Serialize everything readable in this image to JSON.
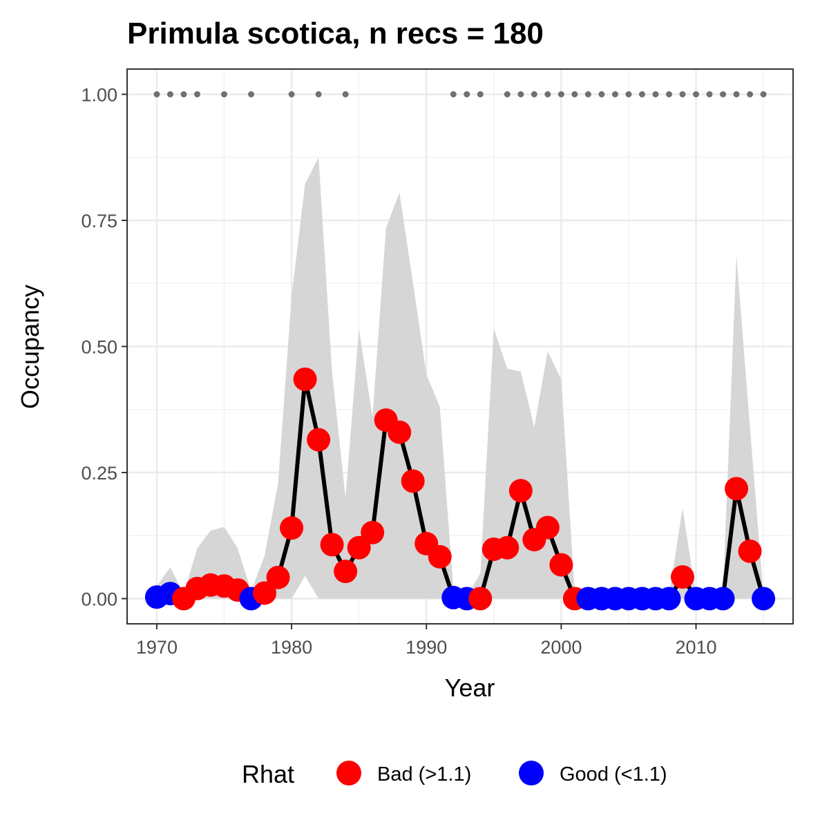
{
  "chart_data": {
    "type": "line",
    "title": "Primula scotica, n recs = 180",
    "xlabel": "Year",
    "ylabel": "Occupancy",
    "xlim": [
      1967.8,
      2017.2
    ],
    "ylim": [
      -0.05,
      1.05
    ],
    "x_ticks": [
      1970,
      1980,
      1990,
      2000,
      2010
    ],
    "x_tick_labels": [
      "1970",
      "1980",
      "1990",
      "2000",
      "2010"
    ],
    "y_ticks": [
      0,
      0.25,
      0.5,
      0.75,
      1
    ],
    "y_tick_labels": [
      "0.00",
      "0.25",
      "0.50",
      "0.75",
      "1.00"
    ],
    "grid": true,
    "x": [
      1970,
      1971,
      1972,
      1973,
      1974,
      1975,
      1976,
      1977,
      1978,
      1979,
      1980,
      1981,
      1982,
      1983,
      1984,
      1985,
      1986,
      1987,
      1988,
      1989,
      1990,
      1991,
      1992,
      1993,
      1994,
      1995,
      1996,
      1997,
      1998,
      1999,
      2000,
      2001,
      2002,
      2003,
      2004,
      2005,
      2006,
      2007,
      2008,
      2009,
      2010,
      2011,
      2012,
      2013,
      2014,
      2015
    ],
    "occupancy": [
      0.003,
      0.01,
      0,
      0.02,
      0.027,
      0.025,
      0.017,
      0,
      0.011,
      0.042,
      0.14,
      0.435,
      0.315,
      0.107,
      0.054,
      0.101,
      0.131,
      0.354,
      0.33,
      0.233,
      0.109,
      0.083,
      0.002,
      0,
      0,
      0.098,
      0.101,
      0.214,
      0.117,
      0.141,
      0.067,
      0,
      0,
      0,
      0,
      0,
      0,
      0,
      0,
      0.043,
      0,
      0,
      0,
      0.218,
      0.094,
      0
    ],
    "ci_lower": [
      0,
      0,
      0,
      0,
      0,
      0,
      0,
      0,
      0,
      0,
      0,
      0.045,
      0,
      0,
      0,
      0,
      0,
      0,
      0,
      0,
      0,
      0,
      0,
      0,
      0,
      0,
      0,
      0,
      0,
      0,
      0,
      0,
      0,
      0,
      0,
      0,
      0,
      0,
      0,
      0,
      0,
      0,
      0,
      0,
      0,
      0
    ],
    "ci_upper": [
      0.025,
      0.062,
      0.01,
      0.1,
      0.135,
      0.142,
      0.1,
      0.015,
      0.085,
      0.23,
      0.6,
      0.822,
      0.875,
      0.45,
      0.2,
      0.535,
      0.36,
      0.735,
      0.805,
      0.627,
      0.445,
      0.38,
      0.02,
      0.005,
      0.05,
      0.535,
      0.456,
      0.45,
      0.34,
      0.49,
      0.435,
      0.01,
      0,
      0,
      0,
      0,
      0,
      0,
      0.005,
      0.18,
      0.005,
      0,
      0.01,
      0.68,
      0.34,
      0.005
    ],
    "rhat": [
      "Good",
      "Good",
      "Bad",
      "Bad",
      "Bad",
      "Bad",
      "Bad",
      "Good",
      "Bad",
      "Bad",
      "Bad",
      "Bad",
      "Bad",
      "Bad",
      "Bad",
      "Bad",
      "Bad",
      "Bad",
      "Bad",
      "Bad",
      "Bad",
      "Bad",
      "Good",
      "Good",
      "Bad",
      "Bad",
      "Bad",
      "Bad",
      "Bad",
      "Bad",
      "Bad",
      "Bad",
      "Good",
      "Good",
      "Good",
      "Good",
      "Good",
      "Good",
      "Good",
      "Bad",
      "Good",
      "Good",
      "Good",
      "Bad",
      "Bad",
      "Good"
    ],
    "record_years": [
      1970,
      1971,
      1972,
      1973,
      1975,
      1977,
      1980,
      1982,
      1984,
      1992,
      1993,
      1994,
      1996,
      1997,
      1998,
      1999,
      2000,
      2001,
      2002,
      2003,
      2004,
      2005,
      2006,
      2007,
      2008,
      2009,
      2010,
      2011,
      2012,
      2013,
      2014,
      2015
    ],
    "record_y": 1,
    "legend": {
      "title": "Rhat",
      "position": "bottom",
      "entries": [
        {
          "key": "Bad",
          "label": "Bad (>1.1)",
          "color": "#ff0000"
        },
        {
          "key": "Good",
          "label": "Good (<1.1)",
          "color": "#0000ff"
        }
      ]
    },
    "colors": {
      "ribbon": "#d6d6d6",
      "line": "#000000",
      "record_point": "#707070",
      "grid_major": "#ebebeb",
      "grid_minor": "#f2f2f2",
      "panel_border": "#333333"
    }
  }
}
